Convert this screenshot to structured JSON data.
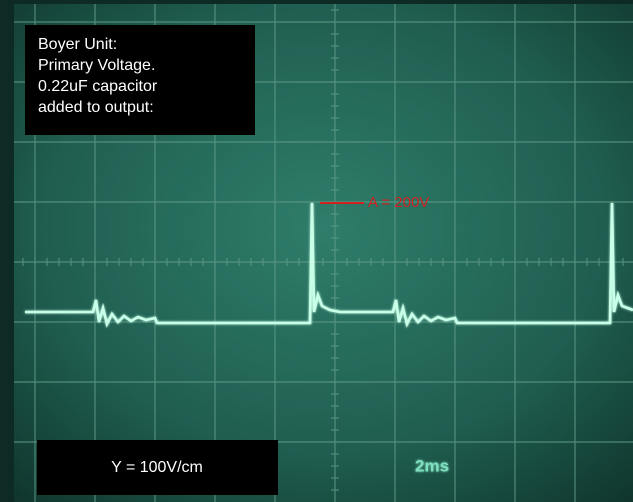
{
  "caption": {
    "lines": [
      "Boyer Unit:",
      "Primary Voltage.",
      "0.22uF capacitor",
      "added to output:"
    ]
  },
  "annotation": "A = 200V",
  "scale_label": "Y = 100V/cm",
  "timebase": "2ms"
}
